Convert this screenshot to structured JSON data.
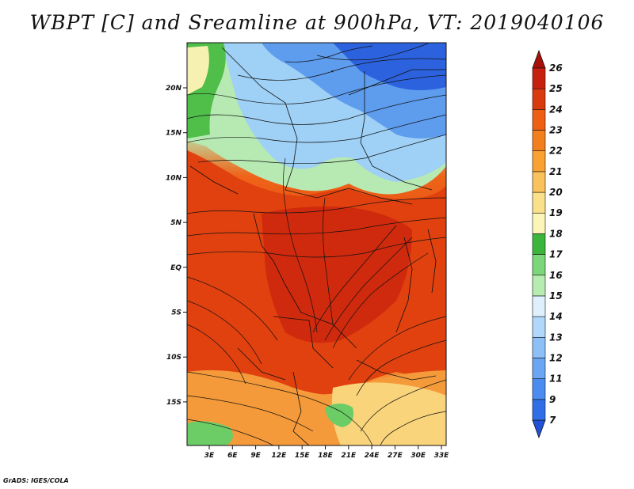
{
  "title": "WBPT [C] and Sreamline at 900hPa, VT: 2019040106",
  "credit": "GrADS: IGES/COLA",
  "map": {
    "variable": "Wet bulb potential temperature",
    "units": "C",
    "level": "900hPa",
    "valid_time": "2019040106",
    "lat_labels": [
      "20N",
      "15N",
      "10N",
      "5N",
      "EQ",
      "5S",
      "10S",
      "15S"
    ],
    "lon_labels": [
      "3E",
      "6E",
      "9E",
      "12E",
      "15E",
      "18E",
      "21E",
      "24E",
      "27E",
      "30E",
      "33E"
    ]
  },
  "colorbar": {
    "levels": [
      "7",
      "9",
      "11",
      "12",
      "13",
      "14",
      "15",
      "16",
      "17",
      "18",
      "19",
      "20",
      "21",
      "22",
      "23",
      "24",
      "25",
      "26"
    ],
    "colors": [
      "#1f52d6",
      "#2f6ee6",
      "#4a8cf0",
      "#6aa6f4",
      "#8cc0f7",
      "#b0d8fa",
      "#dff0fc",
      "#b6ecb0",
      "#7cd77a",
      "#3cb53c",
      "#fbf6b8",
      "#fbe08a",
      "#f9c25a",
      "#f9a231",
      "#f27f1c",
      "#ee5f13",
      "#d93a0e",
      "#c8200e",
      "#a8110a"
    ]
  }
}
